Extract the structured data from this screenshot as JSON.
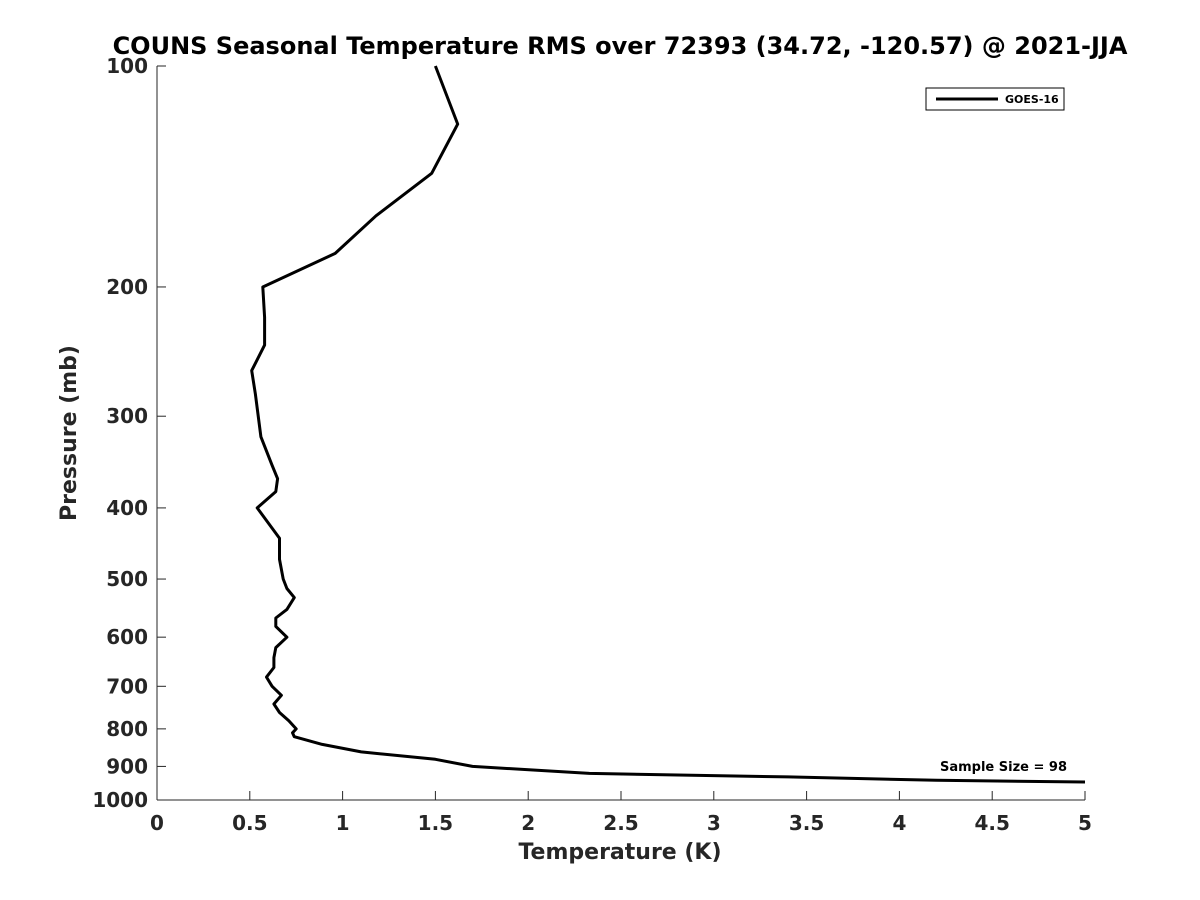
{
  "chart_data": {
    "type": "line",
    "title": "COUNS Seasonal Temperature RMS over 72393 (34.72, -120.57) @ 2021-JJA",
    "xlabel": "Temperature (K)",
    "ylabel": "Pressure (mb)",
    "xlim": [
      0,
      5
    ],
    "ylim": [
      100,
      1000
    ],
    "yscale": "log",
    "y_reversed": true,
    "grid": false,
    "legend_position": "top-right",
    "x_ticks": [
      0,
      0.5,
      1,
      1.5,
      2,
      2.5,
      3,
      3.5,
      4,
      4.5,
      5
    ],
    "x_tick_labels": [
      "0",
      "0.5",
      "1",
      "1.5",
      "2",
      "2.5",
      "3",
      "3.5",
      "4",
      "4.5",
      "5"
    ],
    "y_ticks": [
      100,
      200,
      300,
      400,
      500,
      600,
      700,
      800,
      900,
      1000
    ],
    "y_tick_labels": [
      "100",
      "200",
      "300",
      "400",
      "500",
      "600",
      "700",
      "800",
      "900",
      "1000"
    ],
    "annotation": "Sample Size = 98",
    "series": [
      {
        "name": "GOES-16",
        "color": "#000000",
        "points": [
          [
            1.5,
            100
          ],
          [
            1.62,
            120
          ],
          [
            1.48,
            140
          ],
          [
            1.18,
            160
          ],
          [
            0.96,
            180
          ],
          [
            0.57,
            200
          ],
          [
            0.58,
            220
          ],
          [
            0.58,
            240
          ],
          [
            0.51,
            260
          ],
          [
            0.53,
            280
          ],
          [
            0.56,
            320
          ],
          [
            0.62,
            350
          ],
          [
            0.65,
            365
          ],
          [
            0.64,
            380
          ],
          [
            0.54,
            400
          ],
          [
            0.66,
            440
          ],
          [
            0.66,
            470
          ],
          [
            0.68,
            500
          ],
          [
            0.7,
            515
          ],
          [
            0.74,
            530
          ],
          [
            0.7,
            550
          ],
          [
            0.64,
            565
          ],
          [
            0.64,
            580
          ],
          [
            0.7,
            600
          ],
          [
            0.64,
            620
          ],
          [
            0.63,
            640
          ],
          [
            0.63,
            660
          ],
          [
            0.59,
            680
          ],
          [
            0.62,
            700
          ],
          [
            0.67,
            720
          ],
          [
            0.63,
            740
          ],
          [
            0.66,
            760
          ],
          [
            0.71,
            780
          ],
          [
            0.75,
            800
          ],
          [
            0.73,
            810
          ],
          [
            0.74,
            820
          ],
          [
            0.89,
            840
          ],
          [
            1.1,
            860
          ],
          [
            1.5,
            880
          ],
          [
            1.7,
            900
          ],
          [
            2.33,
            920
          ],
          [
            3.4,
            930
          ],
          [
            4.2,
            940
          ],
          [
            5.0,
            945
          ]
        ]
      }
    ]
  }
}
